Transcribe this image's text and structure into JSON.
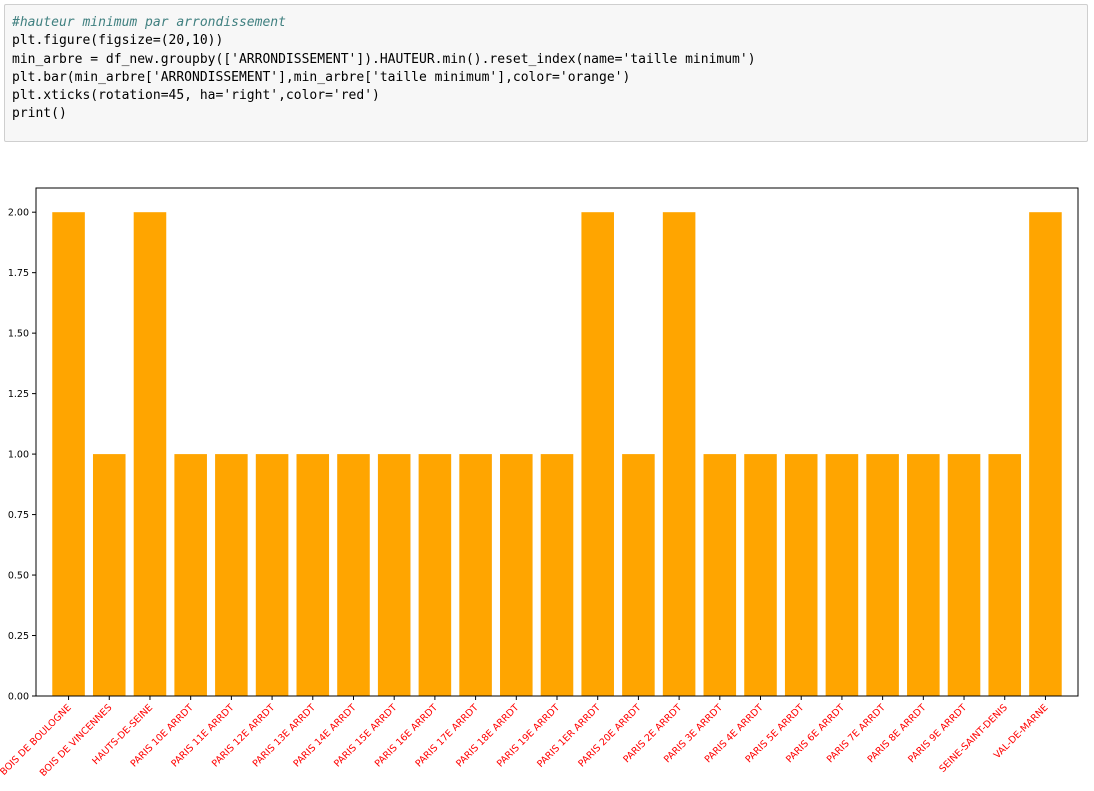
{
  "code_cell": {
    "lines": [
      {
        "type": "comment",
        "text": "#hauteur minimum par arrondissement"
      },
      {
        "type": "code",
        "text": "plt.figure(figsize=(20,10))"
      },
      {
        "type": "code",
        "text": "min_arbre = df_new.groupby(['ARRONDISSEMENT']).HAUTEUR.min().reset_index(name='taille minimum')"
      },
      {
        "type": "code",
        "text": "plt.bar(min_arbre['ARRONDISSEMENT'],min_arbre['taille minimum'],color='orange')"
      },
      {
        "type": "code",
        "text": "plt.xticks(rotation=45, ha='right',color='red')"
      },
      {
        "type": "code",
        "text": "print()"
      }
    ]
  },
  "chart_data": {
    "type": "bar",
    "title": "",
    "xlabel": "",
    "ylabel": "",
    "bar_color": "#ffa500",
    "xtick_color": "#ff0000",
    "axis_color": "#000000",
    "ylim": [
      0,
      2.1
    ],
    "yticks": [
      0.0,
      0.25,
      0.5,
      0.75,
      1.0,
      1.25,
      1.5,
      1.75,
      2.0
    ],
    "ytick_labels": [
      "0.00",
      "0.25",
      "0.50",
      "0.75",
      "1.00",
      "1.25",
      "1.50",
      "1.75",
      "2.00"
    ],
    "xtick_rotation": 45,
    "categories": [
      "BOIS DE BOULOGNE",
      "BOIS DE VINCENNES",
      "HAUTS-DE-SEINE",
      "PARIS 10E ARRDT",
      "PARIS 11E ARRDT",
      "PARIS 12E ARRDT",
      "PARIS 13E ARRDT",
      "PARIS 14E ARRDT",
      "PARIS 15E ARRDT",
      "PARIS 16E ARRDT",
      "PARIS 17E ARRDT",
      "PARIS 18E ARRDT",
      "PARIS 19E ARRDT",
      "PARIS 1ER ARRDT",
      "PARIS 20E ARRDT",
      "PARIS 2E ARRDT",
      "PARIS 3E ARRDT",
      "PARIS 4E ARRDT",
      "PARIS 5E ARRDT",
      "PARIS 6E ARRDT",
      "PARIS 7E ARRDT",
      "PARIS 8E ARRDT",
      "PARIS 9E ARRDT",
      "SEINE-SAINT-DENIS",
      "VAL-DE-MARNE"
    ],
    "values": [
      2,
      1,
      2,
      1,
      1,
      1,
      1,
      1,
      1,
      1,
      1,
      1,
      1,
      2,
      1,
      2,
      1,
      1,
      1,
      1,
      1,
      1,
      1,
      1,
      2
    ]
  }
}
